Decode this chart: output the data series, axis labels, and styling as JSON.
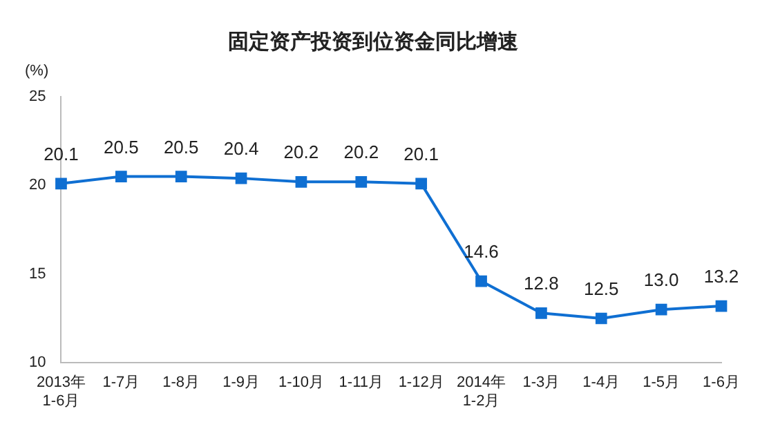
{
  "chart_data": {
    "type": "line",
    "title": "固定资产投资到位资金同比增速",
    "ylabel": "(%)",
    "categories": [
      "2013年\n1-6月",
      "1-7月",
      "1-8月",
      "1-9月",
      "1-10月",
      "1-11月",
      "1-12月",
      "2014年\n1-2月",
      "1-3月",
      "1-4月",
      "1-5月",
      "1-6月"
    ],
    "series": [
      {
        "color": "#0f6fd2",
        "values": [
          20.1,
          20.5,
          20.5,
          20.4,
          20.2,
          20.2,
          20.1,
          14.6,
          12.8,
          12.5,
          13.0,
          13.2
        ]
      }
    ],
    "value_labels": [
      "20.1",
      "20.5",
      "20.5",
      "20.4",
      "20.2",
      "20.2",
      "20.1",
      "14.6",
      "12.8",
      "12.5",
      "13.0",
      "13.2"
    ],
    "ylim": [
      10,
      25
    ],
    "yticks": [
      10,
      15,
      20,
      25
    ],
    "grid": false,
    "legend": false,
    "marker": "square",
    "line_style": "solid"
  }
}
